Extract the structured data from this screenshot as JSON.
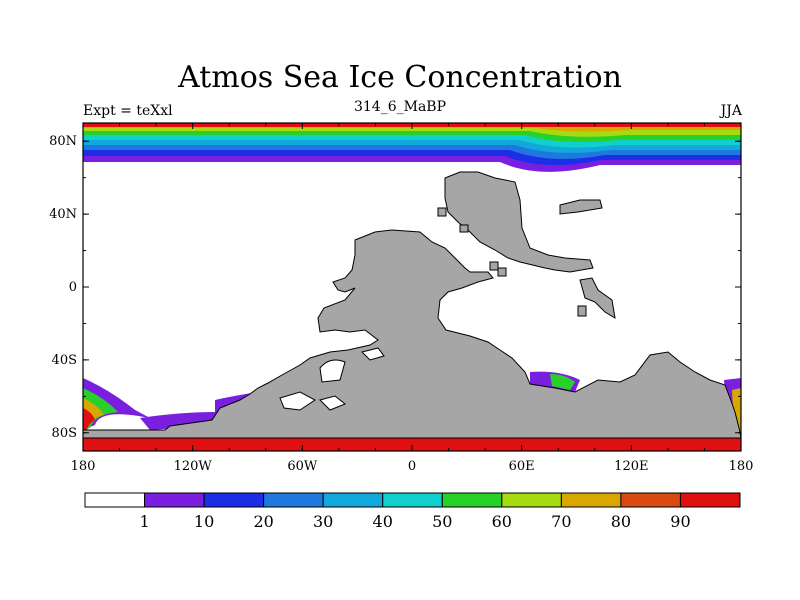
{
  "title": "Atmos Sea Ice Concentration",
  "left_label": "Expt = teXxl",
  "center_label": "314_6_MaBP",
  "right_label": "JJA",
  "colors": {
    "land": "#a6a6a6",
    "ocean_no_ice": "#ffffff",
    "frame": "#000000"
  },
  "map": {
    "projection": "cylindrical-equidistant",
    "x_ticks": [
      "180",
      "120W",
      "60W",
      "0",
      "60E",
      "120E",
      "180"
    ],
    "x_tick_values": [
      -180,
      -120,
      -60,
      0,
      60,
      120,
      180
    ],
    "y_ticks": [
      "80N",
      "40N",
      "0",
      "40S",
      "80S"
    ],
    "y_tick_values": [
      80,
      40,
      0,
      -40,
      -80
    ],
    "lon_range": [
      -180,
      180
    ],
    "lat_range": [
      -90,
      90
    ]
  },
  "colorbar": {
    "levels": [
      "1",
      "10",
      "20",
      "30",
      "40",
      "50",
      "60",
      "70",
      "80",
      "90"
    ],
    "colors": [
      "#ffffff",
      "#7a1fe0",
      "#1c2ee6",
      "#1e78e0",
      "#12a8dc",
      "#10cfcc",
      "#28d12a",
      "#a8da12",
      "#d8a800",
      "#d84a10",
      "#e01010"
    ]
  }
}
